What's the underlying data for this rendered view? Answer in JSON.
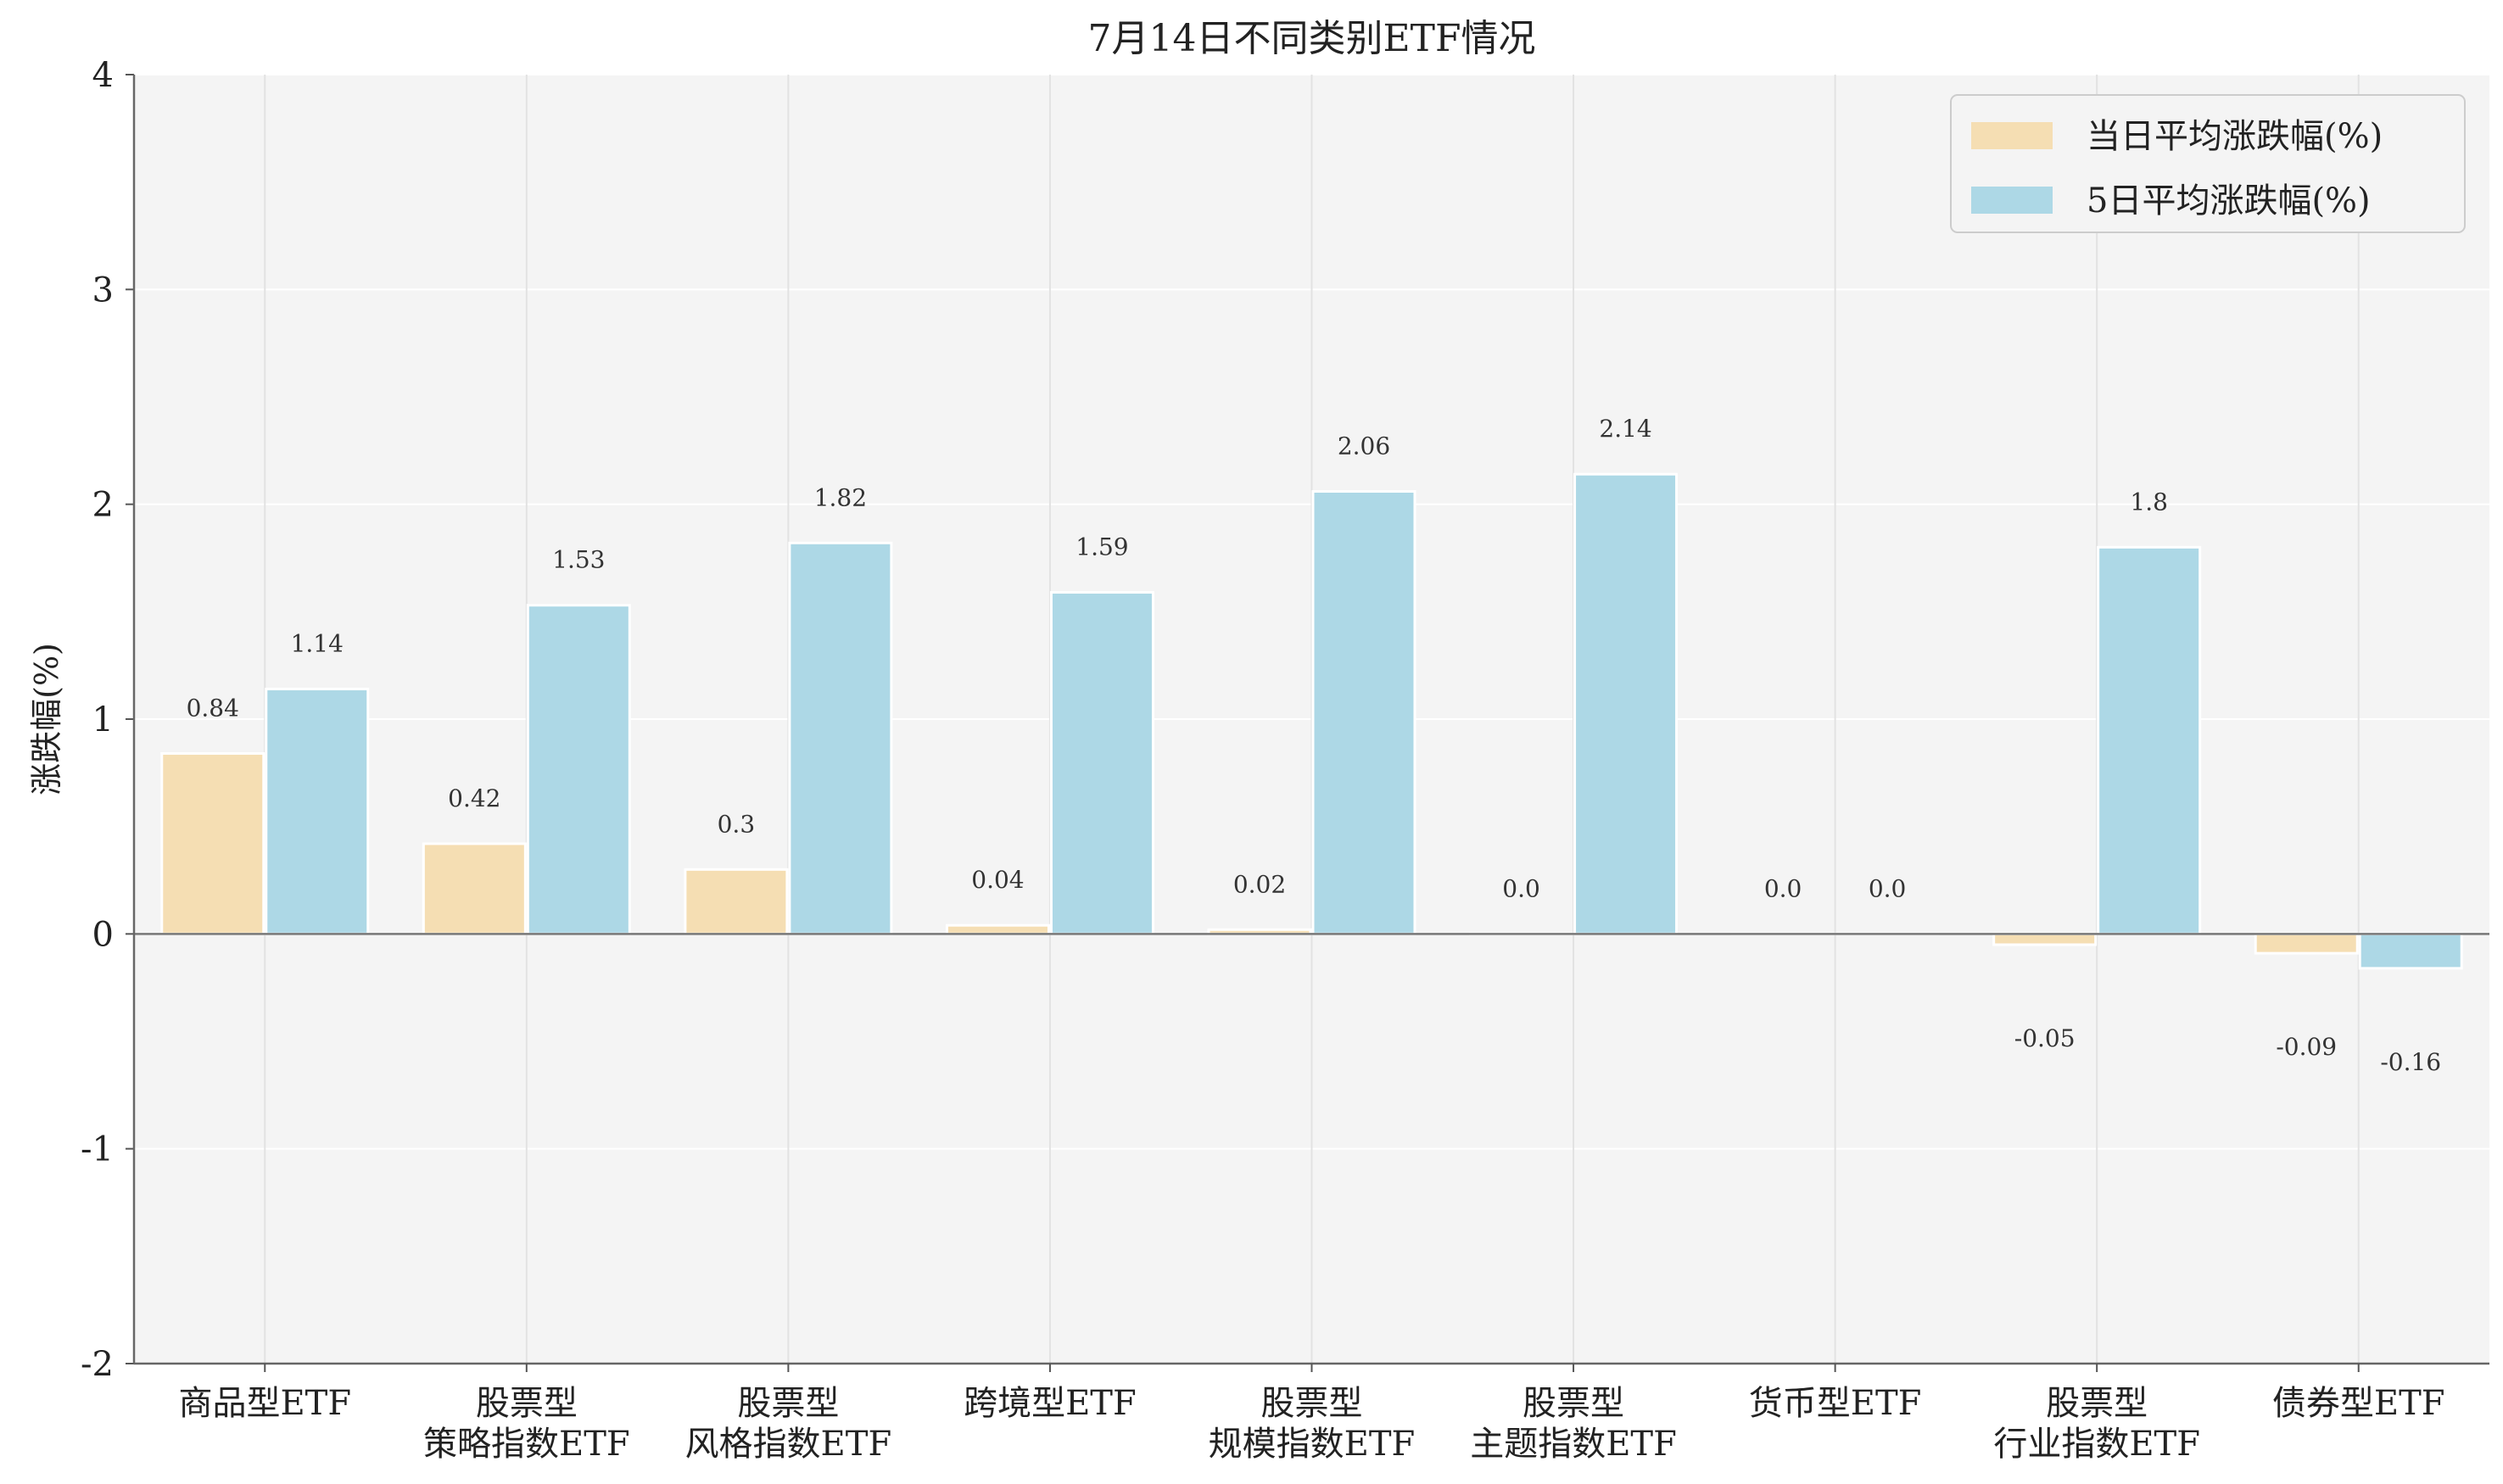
{
  "chart_data": {
    "type": "bar",
    "title": "7月14日不同类别ETF情况",
    "xlabel": "",
    "ylabel": "涨跌幅(%)",
    "ylim": [
      -2,
      4
    ],
    "yticks": [
      -2,
      -1,
      0,
      1,
      2,
      3,
      4
    ],
    "ytick_labels": [
      "-2",
      "-1",
      "0",
      "1",
      "2",
      "3",
      "4"
    ],
    "grid": true,
    "legend_position": "top-right",
    "categories": [
      [
        "商品型ETF"
      ],
      [
        "股票型",
        "策略指数ETF"
      ],
      [
        "股票型",
        "风格指数ETF"
      ],
      [
        "跨境型ETF"
      ],
      [
        "股票型",
        "规模指数ETF"
      ],
      [
        "股票型",
        "主题指数ETF"
      ],
      [
        "货币型ETF"
      ],
      [
        "股票型",
        "行业指数ETF"
      ],
      [
        "债券型ETF"
      ]
    ],
    "series": [
      {
        "name": "当日平均涨跌幅(%)",
        "color": "#f5deb3",
        "values": [
          0.84,
          0.42,
          0.3,
          0.04,
          0.02,
          0.0,
          0.0,
          -0.05,
          -0.09
        ],
        "labels": [
          "0.84",
          "0.42",
          "0.3",
          "0.04",
          "0.02",
          "0.0",
          "0.0",
          "-0.05",
          "-0.09"
        ]
      },
      {
        "name": "5日平均涨跌幅(%)",
        "color": "#add8e6",
        "values": [
          1.14,
          1.53,
          1.82,
          1.59,
          2.06,
          2.14,
          0.0,
          1.8,
          -0.16
        ],
        "labels": [
          "1.14",
          "1.53",
          "1.82",
          "1.59",
          "2.06",
          "2.14",
          "0.0",
          "1.8",
          "-0.16"
        ]
      }
    ]
  }
}
